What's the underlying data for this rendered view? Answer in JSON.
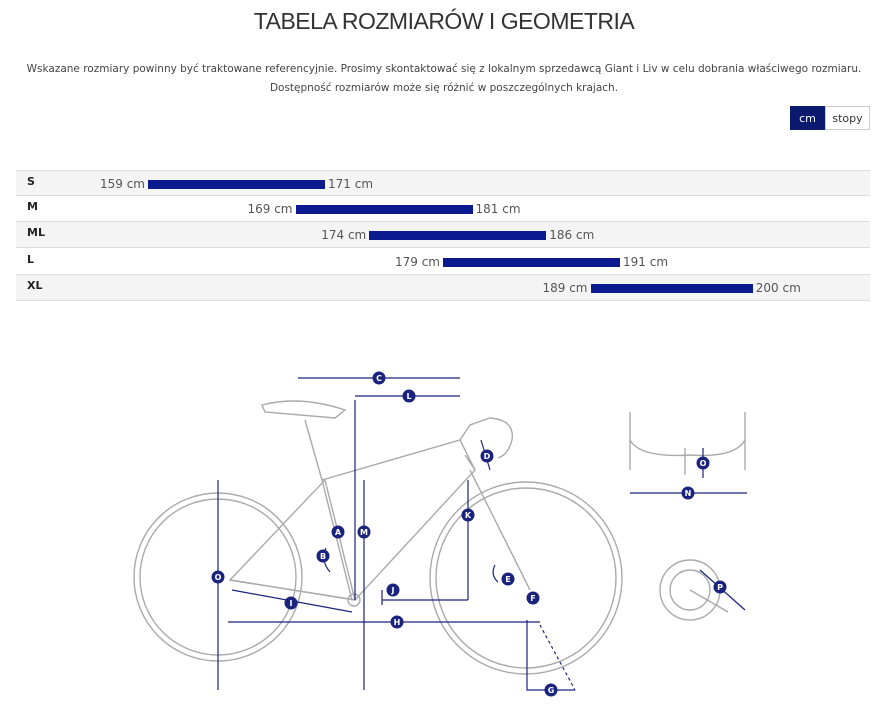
{
  "header": {
    "title": "TABELA ROZMIARÓW I GEOMETRIA",
    "description": [
      "Wskazane rozmiary powinny być traktowane referencyjnie. Prosimy skontaktować się z lokalnym sprzedawcą Giant i Liv w celu dobrania właściwego rozmiaru.",
      "Dostępność rozmiarów może się różnić w poszczególnych krajach."
    ]
  },
  "unit_toggle": [
    "cm",
    "stopy"
  ],
  "size_table": {
    "rows": [
      {
        "size": "S",
        "min": {
          "value": 159,
          "label": "159 cm"
        },
        "max": {
          "value": 171,
          "label": "171 cm"
        }
      },
      {
        "size": "M",
        "min": {
          "value": 169,
          "label": "169 cm"
        },
        "max": {
          "value": 181,
          "label": "181 cm"
        }
      },
      {
        "size": "ML",
        "min": {
          "value": 174,
          "label": "174 cm"
        },
        "max": {
          "value": 186,
          "label": "186 cm"
        }
      },
      {
        "size": "L",
        "min": {
          "value": 179,
          "label": "179 cm"
        },
        "max": {
          "value": 191,
          "label": "191 cm"
        }
      },
      {
        "size": "XL",
        "min": {
          "value": 189,
          "label": "189 cm"
        },
        "max": {
          "value": 200,
          "label": "200 cm"
        }
      }
    ]
  },
  "diagram": {
    "labels": [
      "C",
      "L",
      "D",
      "K",
      "A",
      "M",
      "B",
      "O",
      "J",
      "E",
      "F",
      "I",
      "H",
      "G",
      "O",
      "N",
      "P"
    ]
  }
}
